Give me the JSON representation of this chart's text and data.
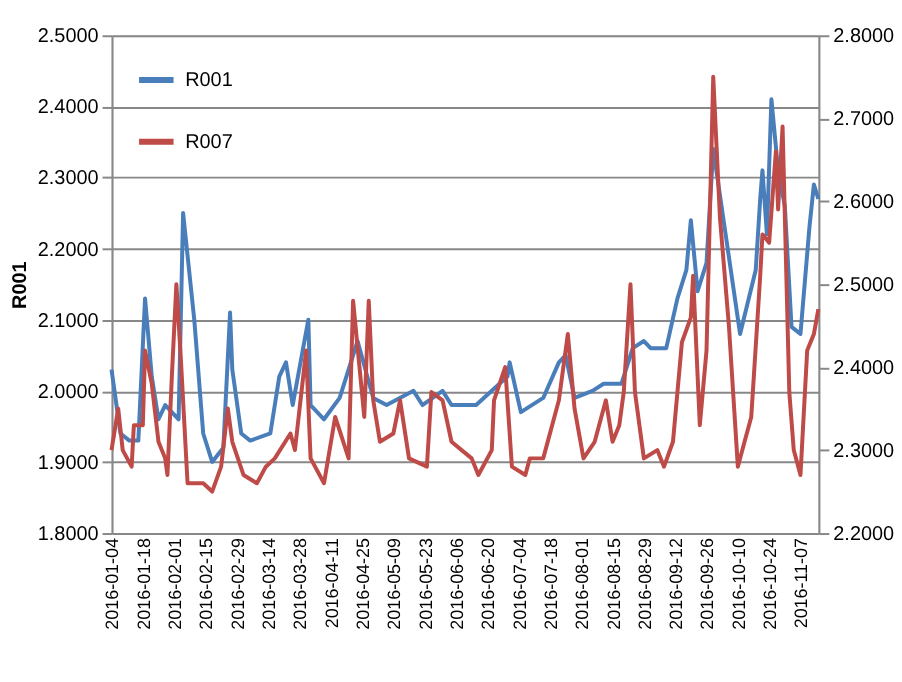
{
  "chart_data": {
    "type": "line",
    "ylabel": "R001",
    "xlim": [
      "2016-01-04",
      "2016-11-15"
    ],
    "xticks": [
      "2016-01-04",
      "2016-01-18",
      "2016-02-01",
      "2016-02-15",
      "2016-02-29",
      "2016-03-14",
      "2016-03-28",
      "2016-04-11",
      "2016-04-25",
      "2016-05-09",
      "2016-05-23",
      "2016-06-06",
      "2016-06-20",
      "2016-07-04",
      "2016-07-18",
      "2016-08-01",
      "2016-08-15",
      "2016-08-29",
      "2016-09-12",
      "2016-09-26",
      "2016-10-10",
      "2016-10-24",
      "2016-11-07"
    ],
    "ylim": [
      1.8,
      2.5
    ],
    "yticks": [
      {
        "value": 1.8,
        "label": "1.8000"
      },
      {
        "value": 1.9,
        "label": "1.9000"
      },
      {
        "value": 2.0,
        "label": "2.0000"
      },
      {
        "value": 2.1,
        "label": "2.1000"
      },
      {
        "value": 2.2,
        "label": "2.2000"
      },
      {
        "value": 2.3,
        "label": "2.3000"
      },
      {
        "value": 2.4,
        "label": "2.4000"
      },
      {
        "value": 2.5,
        "label": "2.5000"
      }
    ],
    "y2lim": [
      2.2,
      2.8
    ],
    "y2ticks": [
      {
        "value": 2.2,
        "label": "2.2000"
      },
      {
        "value": 2.3,
        "label": "2.3000"
      },
      {
        "value": 2.4,
        "label": "2.4000"
      },
      {
        "value": 2.5,
        "label": "2.5000"
      },
      {
        "value": 2.6,
        "label": "2.6000"
      },
      {
        "value": 2.7,
        "label": "2.7000"
      },
      {
        "value": 2.8,
        "label": "2.8000"
      }
    ],
    "grid": "y",
    "legend": "top left",
    "marker": "none",
    "line_style": "solid",
    "series": [
      {
        "name": "R001",
        "color": "#4a7ebb",
        "x": [
          "2016-01-04",
          "2016-01-08",
          "2016-01-12",
          "2016-01-16",
          "2016-01-19",
          "2016-01-22",
          "2016-01-25",
          "2016-01-28",
          "2016-02-03",
          "2016-02-05",
          "2016-02-10",
          "2016-02-14",
          "2016-02-18",
          "2016-02-23",
          "2016-02-26",
          "2016-02-27",
          "2016-03-02",
          "2016-03-06",
          "2016-03-15",
          "2016-03-19",
          "2016-03-22",
          "2016-03-25",
          "2016-04-01",
          "2016-04-02",
          "2016-04-08",
          "2016-04-15",
          "2016-04-23",
          "2016-04-30",
          "2016-05-06",
          "2016-05-18",
          "2016-05-22",
          "2016-05-31",
          "2016-06-04",
          "2016-06-15",
          "2016-06-22",
          "2016-06-29",
          "2016-06-30",
          "2016-07-05",
          "2016-07-15",
          "2016-07-22",
          "2016-07-25",
          "2016-07-29",
          "2016-08-06",
          "2016-08-11",
          "2016-08-19",
          "2016-08-24",
          "2016-08-29",
          "2016-09-01",
          "2016-09-08",
          "2016-09-13",
          "2016-09-17",
          "2016-09-19",
          "2016-09-22",
          "2016-09-26",
          "2016-09-29",
          "2016-10-05",
          "2016-10-11",
          "2016-10-18",
          "2016-10-20",
          "2016-10-21",
          "2016-10-23",
          "2016-10-25",
          "2016-10-28",
          "2016-10-31",
          "2016-11-03",
          "2016-11-07",
          "2016-11-11",
          "2016-11-13",
          "2016-11-15"
        ],
        "values": [
          2.03,
          1.94,
          1.93,
          1.93,
          2.13,
          2.02,
          1.96,
          1.98,
          1.96,
          2.25,
          2.1,
          1.94,
          1.9,
          1.92,
          2.11,
          2.03,
          1.94,
          1.93,
          1.94,
          2.02,
          2.04,
          1.98,
          2.1,
          1.98,
          1.96,
          1.99,
          2.07,
          1.99,
          1.98,
          2.0,
          1.98,
          2.0,
          1.98,
          1.98,
          2.0,
          2.02,
          2.04,
          1.97,
          1.99,
          2.04,
          2.05,
          1.99,
          2.0,
          2.01,
          2.01,
          2.06,
          2.07,
          2.06,
          2.06,
          2.13,
          2.17,
          2.24,
          2.14,
          2.18,
          2.34,
          2.21,
          2.08,
          2.17,
          2.27,
          2.31,
          2.22,
          2.41,
          2.31,
          2.26,
          2.09,
          2.08,
          2.23,
          2.29,
          2.27
        ]
      },
      {
        "name": "R007",
        "color": "#be4b48",
        "axis": "y2",
        "x": [
          "2016-01-04",
          "2016-01-07",
          "2016-01-09",
          "2016-01-13",
          "2016-01-14",
          "2016-01-18",
          "2016-01-19",
          "2016-01-22",
          "2016-01-25",
          "2016-01-28",
          "2016-01-29",
          "2016-01-31",
          "2016-02-02",
          "2016-02-04",
          "2016-02-07",
          "2016-02-14",
          "2016-02-18",
          "2016-02-22",
          "2016-02-25",
          "2016-02-27",
          "2016-03-03",
          "2016-03-09",
          "2016-03-13",
          "2016-03-17",
          "2016-03-24",
          "2016-03-26",
          "2016-03-31",
          "2016-04-02",
          "2016-04-08",
          "2016-04-13",
          "2016-04-19",
          "2016-04-21",
          "2016-04-26",
          "2016-04-28",
          "2016-04-30",
          "2016-05-03",
          "2016-05-09",
          "2016-05-12",
          "2016-05-16",
          "2016-05-24",
          "2016-05-26",
          "2016-05-31",
          "2016-06-04",
          "2016-06-13",
          "2016-06-16",
          "2016-06-22",
          "2016-06-23",
          "2016-06-28",
          "2016-07-01",
          "2016-07-07",
          "2016-07-09",
          "2016-07-15",
          "2016-07-22",
          "2016-07-26",
          "2016-07-29",
          "2016-08-02",
          "2016-08-07",
          "2016-08-12",
          "2016-08-15",
          "2016-08-18",
          "2016-08-20",
          "2016-08-23",
          "2016-08-25",
          "2016-08-29",
          "2016-09-04",
          "2016-09-07",
          "2016-09-11",
          "2016-09-15",
          "2016-09-19",
          "2016-09-20",
          "2016-09-23",
          "2016-09-26",
          "2016-09-29",
          "2016-10-02",
          "2016-10-06",
          "2016-10-10",
          "2016-10-13",
          "2016-10-16",
          "2016-10-20",
          "2016-10-21",
          "2016-10-24",
          "2016-10-27",
          "2016-10-28",
          "2016-10-30",
          "2016-11-02",
          "2016-11-04",
          "2016-11-07",
          "2016-11-10",
          "2016-11-13",
          "2016-11-15"
        ],
        "values": [
          2.3,
          2.35,
          2.3,
          2.28,
          2.33,
          2.33,
          2.42,
          2.38,
          2.31,
          2.29,
          2.27,
          2.39,
          2.5,
          2.41,
          2.26,
          2.26,
          2.25,
          2.28,
          2.35,
          2.31,
          2.27,
          2.26,
          2.28,
          2.29,
          2.32,
          2.3,
          2.42,
          2.29,
          2.26,
          2.34,
          2.29,
          2.48,
          2.34,
          2.48,
          2.36,
          2.31,
          2.32,
          2.36,
          2.29,
          2.28,
          2.37,
          2.36,
          2.31,
          2.29,
          2.27,
          2.3,
          2.36,
          2.4,
          2.28,
          2.27,
          2.29,
          2.29,
          2.36,
          2.44,
          2.35,
          2.29,
          2.31,
          2.36,
          2.31,
          2.33,
          2.37,
          2.5,
          2.37,
          2.29,
          2.3,
          2.28,
          2.31,
          2.43,
          2.46,
          2.51,
          2.33,
          2.42,
          2.75,
          2.58,
          2.45,
          2.28,
          2.31,
          2.34,
          2.51,
          2.56,
          2.55,
          2.66,
          2.59,
          2.69,
          2.37,
          2.3,
          2.27,
          2.42,
          2.44,
          2.47
        ]
      }
    ]
  }
}
